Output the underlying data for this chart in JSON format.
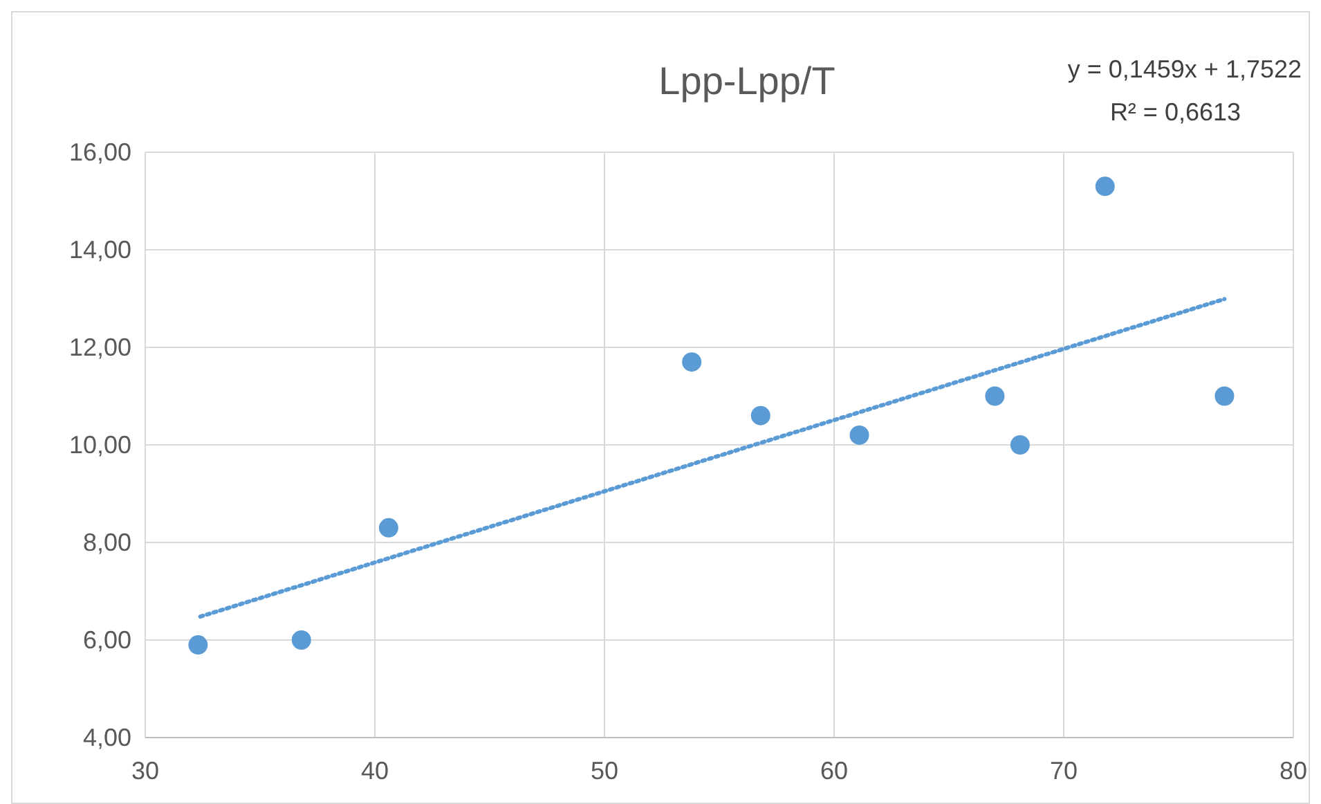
{
  "chart_data": {
    "type": "scatter",
    "title": "Lpp-Lpp/T",
    "xlim": [
      30,
      80
    ],
    "xticks": [
      30,
      40,
      50,
      60,
      70,
      80
    ],
    "ylim": [
      4,
      16
    ],
    "yticks": [
      {
        "value": 4,
        "label": "4,00"
      },
      {
        "value": 6,
        "label": "6,00"
      },
      {
        "value": 8,
        "label": "8,00"
      },
      {
        "value": 10,
        "label": "10,00"
      },
      {
        "value": 12,
        "label": "12,00"
      },
      {
        "value": 14,
        "label": "14,00"
      },
      {
        "value": 16,
        "label": "16,00"
      }
    ],
    "grid": true,
    "series": [
      {
        "color": "#5b9bd5",
        "marker": "circle",
        "x": [
          32.3,
          36.8,
          40.6,
          53.8,
          56.8,
          61.1,
          67.0,
          68.1,
          71.8,
          77.0
        ],
        "values": [
          5.9,
          6.0,
          8.3,
          11.7,
          10.6,
          10.2,
          11.0,
          10.0,
          15.3,
          11.0
        ]
      },
      {
        "type": "line",
        "color": "#5b9bd5",
        "marker": "none",
        "line_style": "dotted",
        "x": [
          32.4,
          77.0
        ],
        "values": [
          6.48,
          12.99
        ]
      }
    ],
    "annotations": [
      "y = 0,1459x + 1,7522",
      "R² = 0,6613"
    ]
  }
}
